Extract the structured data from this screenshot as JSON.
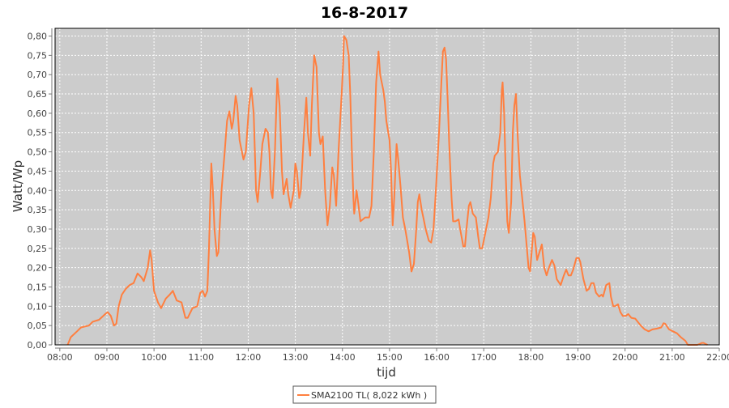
{
  "chart_data": {
    "type": "line",
    "title": "16-8-2017",
    "xlabel": "tijd",
    "ylabel": "Watt/Wp",
    "xlim": [
      "07:54",
      "22:00"
    ],
    "ylim": [
      0,
      0.82
    ],
    "grid": true,
    "legend_position": "bottom",
    "x_ticks": [
      "08:00",
      "09:00",
      "10:00",
      "11:00",
      "12:00",
      "13:00",
      "14:00",
      "15:00",
      "16:00",
      "17:00",
      "18:00",
      "19:00",
      "20:00",
      "21:00",
      "22:00"
    ],
    "y_ticks": [
      "0,00",
      "0,05",
      "0,10",
      "0,15",
      "0,20",
      "0,25",
      "0,30",
      "0,35",
      "0,40",
      "0,45",
      "0,50",
      "0,55",
      "0,60",
      "0,65",
      "0,70",
      "0,75",
      "0,80"
    ],
    "colors": {
      "plot_background": "#cccccc",
      "grid": "#ffffff",
      "series": "#ff7f3f"
    },
    "series": [
      {
        "name": "SMA2100 TL( 8,022 kWh )",
        "x": [
          "08:10",
          "08:14",
          "08:22",
          "08:27",
          "08:37",
          "08:42",
          "08:50",
          "08:58",
          "09:01",
          "09:05",
          "09:09",
          "09:12",
          "09:15",
          "09:19",
          "09:24",
          "09:29",
          "09:34",
          "09:39",
          "09:44",
          "09:47",
          "09:52",
          "09:55",
          "09:57",
          "10:00",
          "10:05",
          "10:09",
          "10:15",
          "10:20",
          "10:24",
          "10:29",
          "10:35",
          "10:40",
          "10:43",
          "10:49",
          "10:55",
          "10:59",
          "11:02",
          "11:05",
          "11:08",
          "11:10",
          "11:13",
          "11:15",
          "11:17",
          "11:20",
          "11:22",
          "11:26",
          "11:30",
          "11:33",
          "11:36",
          "11:39",
          "11:41",
          "11:44",
          "11:46",
          "11:49",
          "11:54",
          "11:57",
          "12:01",
          "12:04",
          "12:07",
          "12:10",
          "12:12",
          "12:15",
          "12:18",
          "12:22",
          "12:25",
          "12:27",
          "12:29",
          "12:31",
          "12:34",
          "12:37",
          "12:40",
          "12:43",
          "12:45",
          "12:47",
          "12:49",
          "12:51",
          "12:54",
          "12:58",
          "13:00",
          "13:02",
          "13:05",
          "13:07",
          "13:11",
          "13:14",
          "13:16",
          "13:19",
          "13:21",
          "13:24",
          "13:27",
          "13:30",
          "13:32",
          "13:35",
          "13:38",
          "13:41",
          "13:44",
          "13:47",
          "13:49",
          "13:52",
          "13:55",
          "13:59",
          "14:01",
          "14:02",
          "14:05",
          "14:08",
          "14:10",
          "14:12",
          "14:14",
          "14:15",
          "14:18",
          "14:20",
          "14:23",
          "14:29",
          "14:34",
          "14:37",
          "14:40",
          "14:43",
          "14:46",
          "14:48",
          "14:52",
          "14:54",
          "14:56",
          "15:00",
          "15:02",
          "15:04",
          "15:06",
          "15:09",
          "15:11",
          "15:14",
          "15:17",
          "15:20",
          "15:25",
          "15:28",
          "15:31",
          "15:34",
          "15:36",
          "15:38",
          "15:41",
          "15:43",
          "15:46",
          "15:50",
          "15:53",
          "15:56",
          "15:59",
          "16:03",
          "16:06",
          "16:08",
          "16:10",
          "16:12",
          "16:14",
          "16:16",
          "16:19",
          "16:21",
          "16:24",
          "16:28",
          "16:30",
          "16:34",
          "16:36",
          "16:38",
          "16:41",
          "16:43",
          "16:46",
          "16:50",
          "16:53",
          "16:55",
          "16:58",
          "17:01",
          "17:06",
          "17:09",
          "17:12",
          "17:14",
          "17:18",
          "17:21",
          "17:23",
          "17:24",
          "17:26",
          "17:28",
          "17:30",
          "17:32",
          "17:35",
          "17:37",
          "17:39",
          "17:41",
          "17:43",
          "17:46",
          "17:49",
          "17:52",
          "17:55",
          "17:57",
          "17:59",
          "18:03",
          "18:05",
          "18:08",
          "18:11",
          "18:14",
          "18:17",
          "18:20",
          "18:23",
          "18:27",
          "18:30",
          "18:33",
          "18:38",
          "18:42",
          "18:45",
          "18:48",
          "18:51",
          "18:54",
          "18:58",
          "19:01",
          "19:03",
          "19:07",
          "19:11",
          "19:14",
          "19:17",
          "19:20",
          "19:23",
          "19:27",
          "19:30",
          "19:32",
          "19:36",
          "19:40",
          "19:42",
          "19:45",
          "19:47",
          "19:51",
          "19:54",
          "19:57",
          "20:01",
          "20:04",
          "20:08",
          "20:13",
          "20:16",
          "20:20",
          "20:25",
          "20:30",
          "20:35",
          "20:40",
          "20:46",
          "20:49",
          "20:51",
          "20:56",
          "21:01",
          "21:06",
          "21:11",
          "21:17",
          "21:20",
          "21:32",
          "21:38",
          "21:40",
          "21:45"
        ],
        "y": [
          0.0,
          0.02,
          0.035,
          0.045,
          0.05,
          0.06,
          0.065,
          0.08,
          0.085,
          0.075,
          0.05,
          0.055,
          0.1,
          0.13,
          0.145,
          0.155,
          0.16,
          0.185,
          0.175,
          0.165,
          0.2,
          0.245,
          0.22,
          0.14,
          0.11,
          0.095,
          0.12,
          0.13,
          0.14,
          0.115,
          0.11,
          0.07,
          0.07,
          0.095,
          0.1,
          0.135,
          0.14,
          0.125,
          0.14,
          0.25,
          0.47,
          0.4,
          0.3,
          0.23,
          0.24,
          0.4,
          0.5,
          0.58,
          0.605,
          0.56,
          0.58,
          0.645,
          0.62,
          0.53,
          0.48,
          0.5,
          0.62,
          0.665,
          0.6,
          0.4,
          0.37,
          0.44,
          0.52,
          0.56,
          0.55,
          0.5,
          0.4,
          0.38,
          0.5,
          0.69,
          0.62,
          0.45,
          0.39,
          0.41,
          0.43,
          0.39,
          0.355,
          0.4,
          0.47,
          0.45,
          0.38,
          0.4,
          0.55,
          0.64,
          0.55,
          0.49,
          0.62,
          0.75,
          0.72,
          0.55,
          0.52,
          0.54,
          0.4,
          0.31,
          0.36,
          0.46,
          0.44,
          0.36,
          0.5,
          0.65,
          0.73,
          0.8,
          0.79,
          0.75,
          0.65,
          0.5,
          0.38,
          0.34,
          0.4,
          0.37,
          0.32,
          0.33,
          0.33,
          0.36,
          0.5,
          0.68,
          0.76,
          0.7,
          0.66,
          0.63,
          0.58,
          0.53,
          0.45,
          0.31,
          0.38,
          0.52,
          0.48,
          0.41,
          0.33,
          0.3,
          0.24,
          0.19,
          0.21,
          0.3,
          0.37,
          0.39,
          0.35,
          0.33,
          0.3,
          0.27,
          0.265,
          0.3,
          0.4,
          0.55,
          0.68,
          0.76,
          0.77,
          0.74,
          0.64,
          0.52,
          0.38,
          0.32,
          0.32,
          0.325,
          0.3,
          0.255,
          0.255,
          0.3,
          0.36,
          0.37,
          0.34,
          0.33,
          0.28,
          0.25,
          0.25,
          0.28,
          0.33,
          0.38,
          0.47,
          0.49,
          0.5,
          0.55,
          0.66,
          0.68,
          0.6,
          0.44,
          0.32,
          0.29,
          0.37,
          0.55,
          0.62,
          0.65,
          0.55,
          0.44,
          0.38,
          0.32,
          0.25,
          0.2,
          0.19,
          0.29,
          0.28,
          0.22,
          0.24,
          0.26,
          0.2,
          0.18,
          0.2,
          0.22,
          0.205,
          0.17,
          0.155,
          0.18,
          0.195,
          0.18,
          0.18,
          0.195,
          0.225,
          0.225,
          0.215,
          0.17,
          0.14,
          0.145,
          0.16,
          0.16,
          0.135,
          0.125,
          0.13,
          0.125,
          0.155,
          0.16,
          0.125,
          0.1,
          0.1,
          0.105,
          0.085,
          0.075,
          0.075,
          0.08,
          0.07,
          0.068,
          0.06,
          0.05,
          0.04,
          0.035,
          0.04,
          0.042,
          0.045,
          0.056,
          0.055,
          0.04,
          0.035,
          0.03,
          0.02,
          0.01,
          0.0,
          0.0,
          0.005,
          0.005,
          0.0
        ]
      }
    ]
  }
}
